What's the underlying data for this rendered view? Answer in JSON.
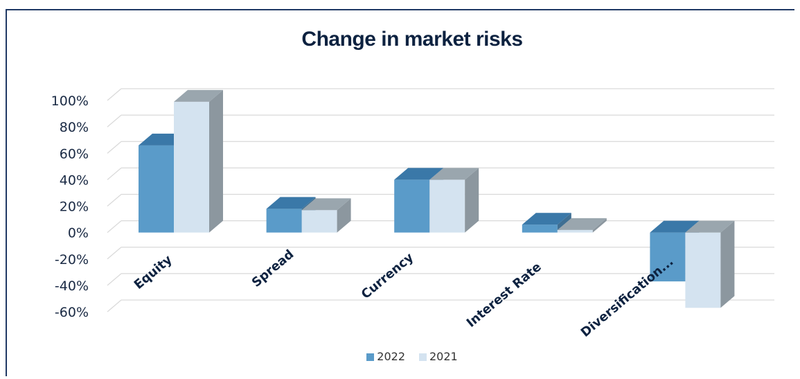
{
  "chart_data": {
    "type": "bar",
    "title": "Change in market risks",
    "categories": [
      "Equity",
      "Spread",
      "Currency",
      "Interest Rate",
      "Diversification..."
    ],
    "series": [
      {
        "name": "2022",
        "values": [
          66,
          18,
          40,
          6,
          -37
        ],
        "color": "#5a9bc9"
      },
      {
        "name": "2021",
        "values": [
          99,
          17,
          40,
          2,
          -57
        ],
        "color": "#d4e3f0"
      }
    ],
    "yticks": [
      "100%",
      "80%",
      "60%",
      "40%",
      "20%",
      "0%",
      "-20%",
      "-40%",
      "-60%"
    ],
    "ylim": [
      -60,
      100
    ],
    "grid": true,
    "legend_position": "bottom",
    "style_3d": true
  }
}
